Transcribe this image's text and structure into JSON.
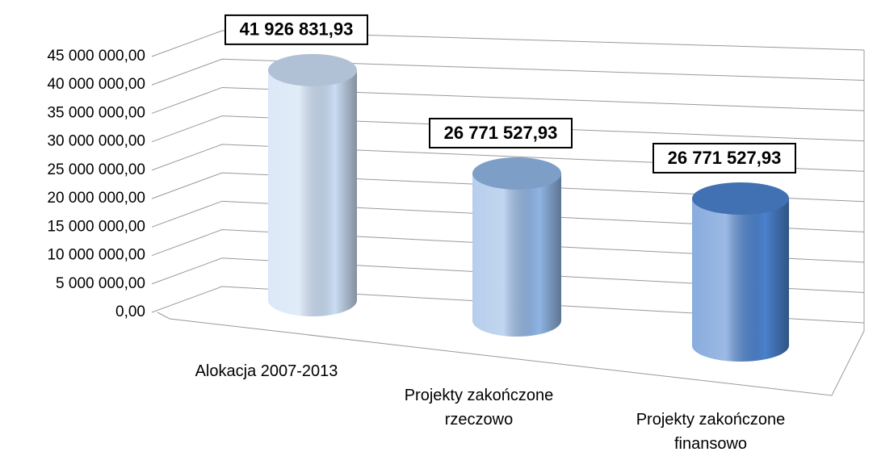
{
  "chart_data": {
    "type": "cylinder3d",
    "categories": [
      "Alokacja 2007-2013",
      "Projekty zakończone rzeczowo",
      "Projekty zakończone finansowo"
    ],
    "values": [
      41926831.93,
      26771527.93,
      26771527.93
    ],
    "value_labels": [
      "41 926 831,93",
      "26 771 527,93",
      "26 771 527,93"
    ],
    "colors": [
      "#c9dcf3",
      "#8fb4e3",
      "#4a80cc"
    ],
    "ylim": [
      0,
      45000000
    ],
    "yticks": [
      {
        "value": 0,
        "label": "0,00"
      },
      {
        "value": 5000000,
        "label": "5 000 000,00"
      },
      {
        "value": 10000000,
        "label": "10 000 000,00"
      },
      {
        "value": 15000000,
        "label": "15 000 000,00"
      },
      {
        "value": 20000000,
        "label": "20 000 000,00"
      },
      {
        "value": 25000000,
        "label": "25 000 000,00"
      },
      {
        "value": 30000000,
        "label": "30 000 000,00"
      },
      {
        "value": 35000000,
        "label": "35 000 000,00"
      },
      {
        "value": 40000000,
        "label": "40 000 000,00"
      },
      {
        "value": 45000000,
        "label": "45 000 000,00"
      }
    ],
    "grid": true
  }
}
